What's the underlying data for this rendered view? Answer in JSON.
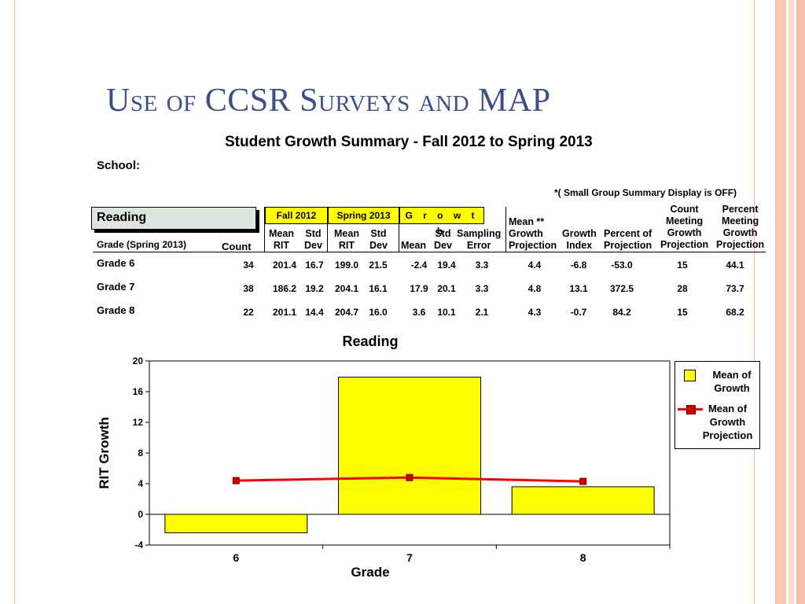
{
  "slide": {
    "title": "Use of CCSR Surveys and MAP"
  },
  "report": {
    "title": "Student Growth Summary - Fall 2012 to Spring 2013",
    "school_label": "School:",
    "summary_note": "*( Small Group Summary Display is OFF)",
    "subject": "Reading"
  },
  "table": {
    "group_headers": {
      "fall": "Fall 2012",
      "spring": "Spring 2013",
      "growth": "G r o w t h"
    },
    "columns": {
      "grade": "Grade (Spring 2013)",
      "count": "Count",
      "fall_mean": [
        "Mean",
        "RIT"
      ],
      "fall_sd": [
        "Std",
        "Dev"
      ],
      "spring_mean": [
        "Mean",
        "RIT"
      ],
      "spring_sd": [
        "Std",
        "Dev"
      ],
      "growth_mean": "Mean",
      "growth_sd": [
        "Std",
        "Dev"
      ],
      "sampling_error": [
        "Sampling",
        "Error"
      ],
      "mean_proj": [
        "Mean **",
        "Growth",
        "Projection"
      ],
      "growth_index": [
        "Growth",
        "Index"
      ],
      "pct_proj": [
        "Percent of",
        "Projection"
      ],
      "count_meeting": [
        "Count",
        "Meeting",
        "Growth",
        "Projection"
      ],
      "pct_meeting": [
        "Percent",
        "Meeting",
        "Growth",
        "Projection"
      ]
    },
    "rows": [
      {
        "grade": "Grade 6",
        "count": "34",
        "fall_mean": "201.4",
        "fall_sd": "16.7",
        "spring_mean": "199.0",
        "spring_sd": "21.5",
        "growth_mean": "-2.4",
        "growth_sd": "19.4",
        "sampling_error": "3.3",
        "mean_proj": "4.4",
        "growth_index": "-6.8",
        "pct_proj": "-53.0",
        "count_meeting": "15",
        "pct_meeting": "44.1"
      },
      {
        "grade": "Grade 7",
        "count": "38",
        "fall_mean": "186.2",
        "fall_sd": "19.2",
        "spring_mean": "204.1",
        "spring_sd": "16.1",
        "growth_mean": "17.9",
        "growth_sd": "20.1",
        "sampling_error": "3.3",
        "mean_proj": "4.8",
        "growth_index": "13.1",
        "pct_proj": "372.5",
        "count_meeting": "28",
        "pct_meeting": "73.7"
      },
      {
        "grade": "Grade 8",
        "count": "22",
        "fall_mean": "201.1",
        "fall_sd": "14.4",
        "spring_mean": "204.7",
        "spring_sd": "16.0",
        "growth_mean": "3.6",
        "growth_sd": "10.1",
        "sampling_error": "2.1",
        "mean_proj": "4.3",
        "growth_index": "-0.7",
        "pct_proj": "84.2",
        "count_meeting": "15",
        "pct_meeting": "68.2"
      }
    ]
  },
  "colors": {
    "bar_fill": "#ffff00",
    "line": "#ff0000",
    "marker": "#cc0000",
    "title": "#3a4f8a"
  },
  "chart_data": {
    "type": "bar",
    "title": "Reading",
    "xlabel": "Grade",
    "ylabel": "RIT Growth",
    "categories": [
      "6",
      "7",
      "8"
    ],
    "ylim": [
      -4,
      20
    ],
    "yticks": [
      -4,
      0,
      4,
      8,
      12,
      16,
      20
    ],
    "grid": false,
    "legend_position": "right",
    "series": [
      {
        "name": "Mean of Growth",
        "kind": "bar",
        "values": [
          -2.4,
          17.9,
          3.6
        ]
      },
      {
        "name": "Mean of Growth Projection",
        "kind": "line",
        "values": [
          4.4,
          4.8,
          4.3
        ]
      }
    ]
  }
}
